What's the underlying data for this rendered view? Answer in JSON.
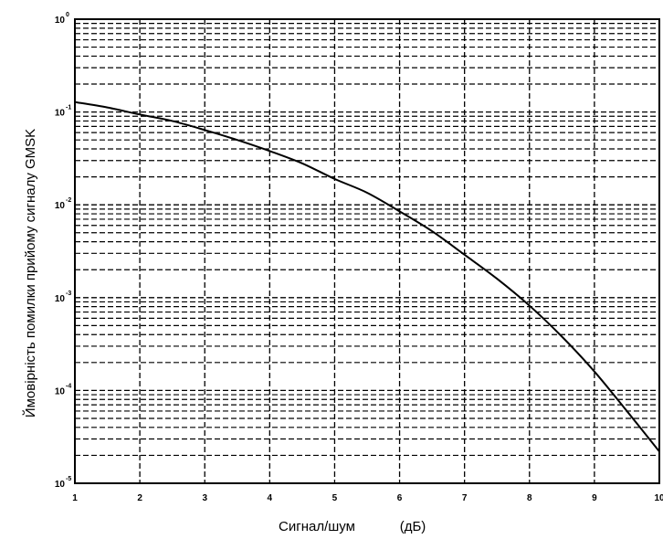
{
  "chart_data": {
    "type": "line",
    "xlabel": "Сигнал/шум",
    "xlabel_unit": "(дБ)",
    "ylabel": "Ймовірність помилки прийому сигналу GMSK",
    "xlim": [
      1,
      10
    ],
    "ylim": [
      1e-05,
      1
    ],
    "y_scale": "log",
    "grid": true,
    "grid_style": "dashed",
    "x_ticks": [
      1,
      2,
      3,
      4,
      5,
      6,
      7,
      8,
      9,
      10
    ],
    "y_ticks": [
      {
        "value": 1,
        "base": "10",
        "exponent": "0"
      },
      {
        "value": 0.1,
        "base": "10",
        "exponent": "-1"
      },
      {
        "value": 0.01,
        "base": "10",
        "exponent": "-2"
      },
      {
        "value": 0.001,
        "base": "10",
        "exponent": "-3"
      },
      {
        "value": 0.0001,
        "base": "10",
        "exponent": "-4"
      },
      {
        "value": 1e-05,
        "base": "10",
        "exponent": "-5"
      }
    ],
    "series": [
      {
        "x": [
          1,
          1.5,
          2,
          2.5,
          3,
          3.5,
          4,
          4.5,
          5,
          5.5,
          6,
          6.5,
          7,
          7.5,
          8,
          8.5,
          9,
          9.5,
          10
        ],
        "values": [
          0.128,
          0.112,
          0.094,
          0.08,
          0.064,
          0.05,
          0.038,
          0.028,
          0.019,
          0.0135,
          0.0085,
          0.0052,
          0.0029,
          0.0016,
          0.00082,
          0.00038,
          0.00016,
          6e-05,
          2.2e-05
        ]
      }
    ]
  }
}
